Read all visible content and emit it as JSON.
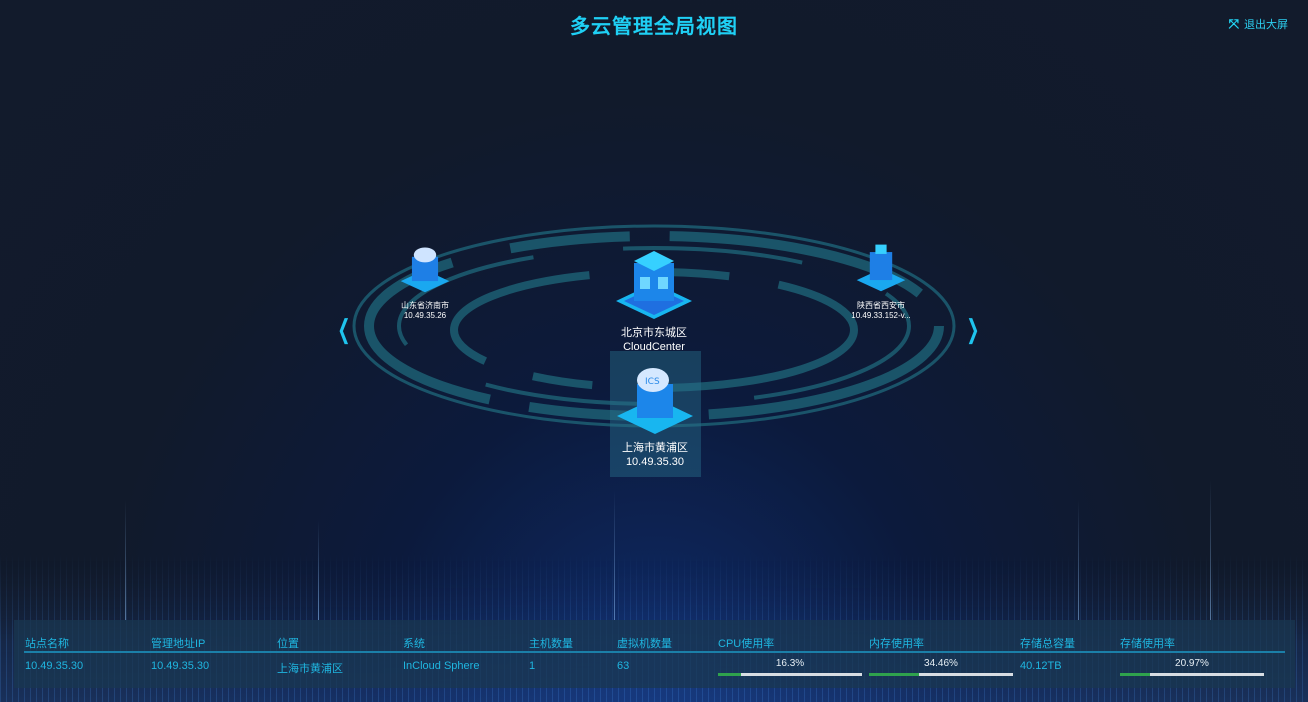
{
  "header": {
    "title": "多云管理全局视图",
    "exit_label": "退出大屏",
    "exit_icon": "fullscreen-exit-icon"
  },
  "nav": {
    "prev_icon": "chevron-left-icon",
    "next_icon": "chevron-right-icon"
  },
  "nodes": [
    {
      "name": "山东省济南市",
      "ip": "10.49.35.26",
      "icon": "ics-cloud-building-icon"
    },
    {
      "name": "北京市东城区",
      "ip": "CloudCenter",
      "icon": "building-icon"
    },
    {
      "name": "陕西省西安市",
      "ip": "10.49.33.152-v...",
      "icon": "building-icon"
    },
    {
      "name": "上海市黄浦区",
      "ip": "10.49.35.30",
      "icon": "ics-cloud-building-icon",
      "selected": true
    }
  ],
  "table": {
    "headers": [
      "站点名称",
      "管理地址IP",
      "位置",
      "系统",
      "主机数量",
      "虚拟机数量",
      "CPU使用率",
      "内存使用率",
      "存储总容量",
      "存储使用率"
    ],
    "row": {
      "site": "10.49.35.30",
      "ip": "10.49.35.30",
      "location": "上海市黄浦区",
      "system": "InCloud Sphere",
      "hosts": "1",
      "vms": "63",
      "cpu": "16.3%",
      "cpu_value": 16.3,
      "mem": "34.46%",
      "mem_value": 34.46,
      "storage_total": "40.12TB",
      "storage_usage": "20.97%",
      "storage_value": 20.97
    }
  },
  "colors": {
    "accent": "#1fd0f5",
    "bar_fill": "#2fa24d",
    "bar_track": "#d8dde3"
  }
}
